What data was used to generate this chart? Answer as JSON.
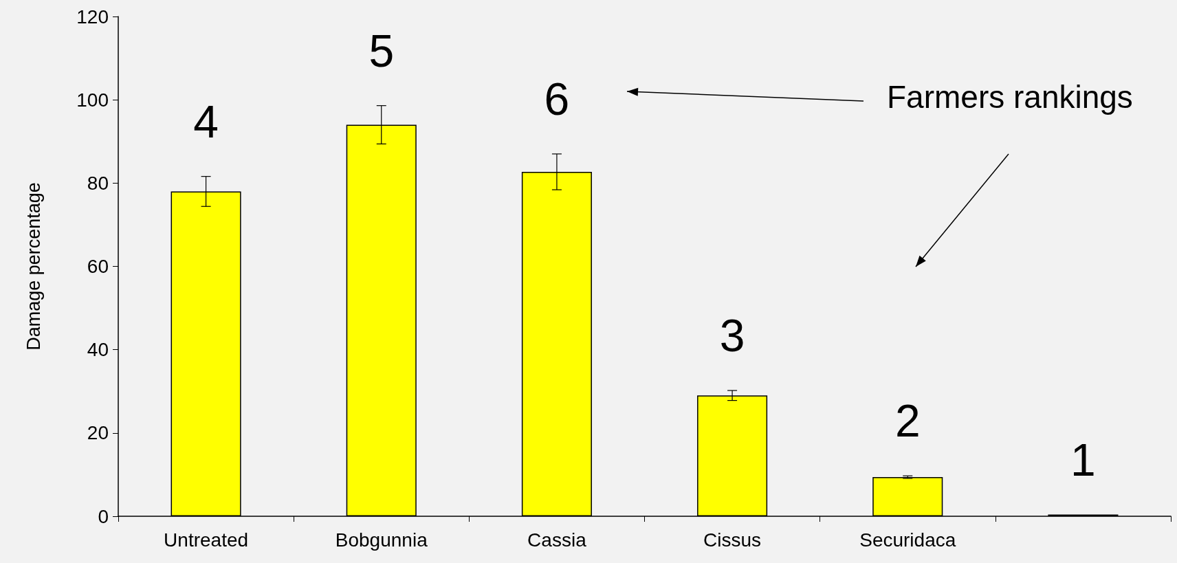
{
  "chart_data": {
    "type": "bar",
    "ylabel": "Damage percentage",
    "categories": [
      "Untreated",
      "Bobgunnia",
      "Cassia",
      "Cissus",
      "Securidaca",
      null
    ],
    "values": [
      78,
      94,
      82.7,
      29,
      9.4,
      0.4
    ],
    "errors": [
      3.6,
      4.6,
      4.3,
      1.2,
      0.3,
      null
    ],
    "color": "#ffff00",
    "ylim": [
      0,
      120
    ],
    "yticks": [
      0,
      20,
      40,
      60,
      80,
      100,
      120
    ],
    "grid": false,
    "annotations": [
      "4",
      "5",
      "6",
      "3",
      "2",
      "1",
      "Farmers rankings"
    ]
  }
}
